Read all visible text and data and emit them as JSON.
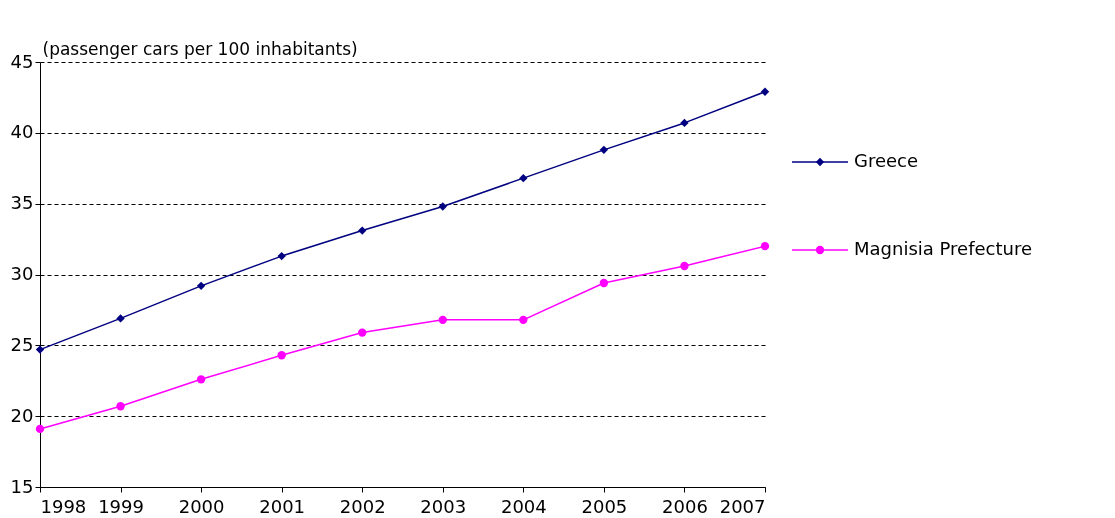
{
  "chart_data": {
    "type": "line",
    "ylabel": "(passenger cars per 100 inhabitants)",
    "x": [
      1998,
      1999,
      2000,
      2001,
      2002,
      2003,
      2004,
      2005,
      2006,
      2007
    ],
    "xlim": [
      1998,
      2007
    ],
    "xticks": [
      1998,
      1999,
      2000,
      2001,
      2002,
      2003,
      2004,
      2005,
      2006,
      2007
    ],
    "ylim": [
      15,
      45
    ],
    "yticks": [
      15,
      20,
      25,
      30,
      35,
      40,
      45
    ],
    "grid": "y",
    "legend": "right",
    "line_style": "solid",
    "series": [
      {
        "name": "Greece",
        "color": "#000080",
        "marker": "diamond",
        "values": [
          24.7,
          26.9,
          29.2,
          31.3,
          33.1,
          34.8,
          36.8,
          38.8,
          40.7,
          42.9
        ]
      },
      {
        "name": "Magnisia Prefecture",
        "color": "#ff00ff",
        "marker": "circle",
        "values": [
          19.1,
          20.7,
          22.6,
          24.3,
          25.9,
          26.8,
          26.8,
          29.4,
          30.6,
          32.0
        ]
      }
    ]
  }
}
